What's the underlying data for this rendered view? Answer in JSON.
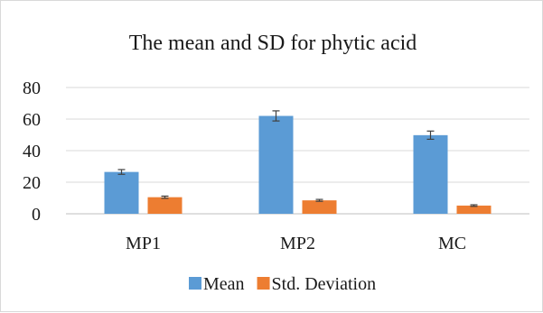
{
  "chart_data": {
    "type": "bar",
    "title": "The mean and SD for phytic acid",
    "xlabel": "",
    "ylabel": "",
    "categories": [
      "MP1",
      "MP2",
      "MC"
    ],
    "series": [
      {
        "name": "Mean",
        "values": [
          26.5,
          62.0,
          49.8
        ],
        "error": [
          1.5,
          3.2,
          2.6
        ],
        "color": "#5B9BD5"
      },
      {
        "name": "Std. Deviation",
        "values": [
          10.5,
          8.5,
          5.2
        ],
        "error": [
          0.7,
          0.6,
          0.5
        ],
        "color": "#ED7D31"
      }
    ],
    "ylim": [
      0,
      80
    ],
    "yticks": [
      0,
      20,
      40,
      60,
      80
    ],
    "grid": true,
    "legend": "bottom"
  }
}
